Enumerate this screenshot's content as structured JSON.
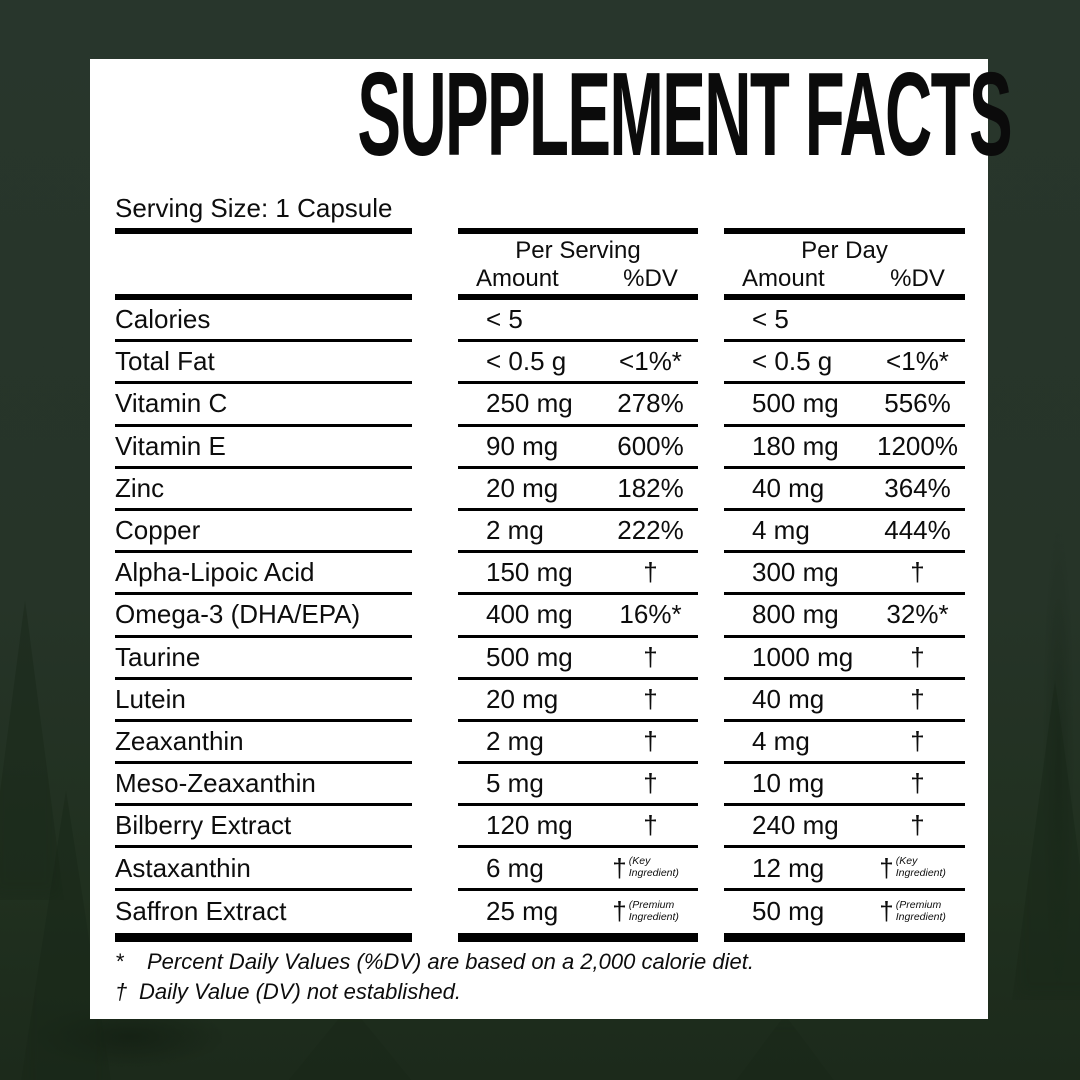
{
  "colors": {
    "background_green": "#26342a",
    "background_green_dark": "#1c2a1b",
    "card": "#ffffff",
    "text": "#0d0d0d",
    "rule": "#000000"
  },
  "title": "SUPPLEMENT FACTS",
  "serving_size_label": "Serving Size: 1 Capsule",
  "table": {
    "column_groups": [
      {
        "id": "per_serving",
        "label": "Per Serving",
        "amount_header": "Amount",
        "dv_header": "%DV"
      },
      {
        "id": "per_day",
        "label": "Per Day",
        "amount_header": "Amount",
        "dv_header": "%DV"
      }
    ],
    "rows": [
      {
        "name": "Calories",
        "serving_amount": "< 5",
        "serving_dv": "",
        "day_amount": "< 5",
        "day_dv": ""
      },
      {
        "name": "Total Fat",
        "serving_amount": "< 0.5 g",
        "serving_dv": "<1%*",
        "day_amount": "< 0.5 g",
        "day_dv": "<1%*"
      },
      {
        "name": "Vitamin C",
        "serving_amount": "250 mg",
        "serving_dv": "278%",
        "day_amount": "500 mg",
        "day_dv": "556%"
      },
      {
        "name": "Vitamin E",
        "serving_amount": "90 mg",
        "serving_dv": "600%",
        "day_amount": "180 mg",
        "day_dv": "1200%"
      },
      {
        "name": "Zinc",
        "serving_amount": "20 mg",
        "serving_dv": "182%",
        "day_amount": "40 mg",
        "day_dv": "364%"
      },
      {
        "name": "Copper",
        "serving_amount": "2 mg",
        "serving_dv": "222%",
        "day_amount": "4 mg",
        "day_dv": "444%"
      },
      {
        "name": "Alpha-Lipoic Acid",
        "serving_amount": "150 mg",
        "serving_dv": "†",
        "day_amount": "300 mg",
        "day_dv": "†"
      },
      {
        "name": "Omega-3 (DHA/EPA)",
        "serving_amount": "400 mg",
        "serving_dv": "16%*",
        "day_amount": "800 mg",
        "day_dv": "32%*"
      },
      {
        "name": "Taurine",
        "serving_amount": "500 mg",
        "serving_dv": "†",
        "day_amount": "1000 mg",
        "day_dv": "†"
      },
      {
        "name": "Lutein",
        "serving_amount": "20 mg",
        "serving_dv": "†",
        "day_amount": "40 mg",
        "day_dv": "†"
      },
      {
        "name": "Zeaxanthin",
        "serving_amount": "2 mg",
        "serving_dv": "†",
        "day_amount": "4 mg",
        "day_dv": "†"
      },
      {
        "name": "Meso-Zeaxanthin",
        "serving_amount": "5 mg",
        "serving_dv": "†",
        "day_amount": "10 mg",
        "day_dv": "†"
      },
      {
        "name": "Bilberry Extract",
        "serving_amount": "120 mg",
        "serving_dv": "†",
        "day_amount": "240 mg",
        "day_dv": "†"
      },
      {
        "name": "Astaxanthin",
        "serving_amount": "6 mg",
        "serving_dv": "†",
        "serving_dv_note": "(Key Ingredient)",
        "day_amount": "12 mg",
        "day_dv": "†",
        "day_dv_note": "(Key Ingredient)"
      },
      {
        "name": "Saffron Extract",
        "serving_amount": "25 mg",
        "serving_dv": "†",
        "serving_dv_note": "(Premium Ingredient)",
        "day_amount": "50 mg",
        "day_dv": "†",
        "day_dv_note": "(Premium Ingredient)"
      }
    ]
  },
  "footnotes": [
    {
      "marker": "*",
      "text": "Percent Daily Values (%DV) are based on a 2,000 calorie diet."
    },
    {
      "marker": "†",
      "text": "Daily Value (DV) not established."
    }
  ]
}
